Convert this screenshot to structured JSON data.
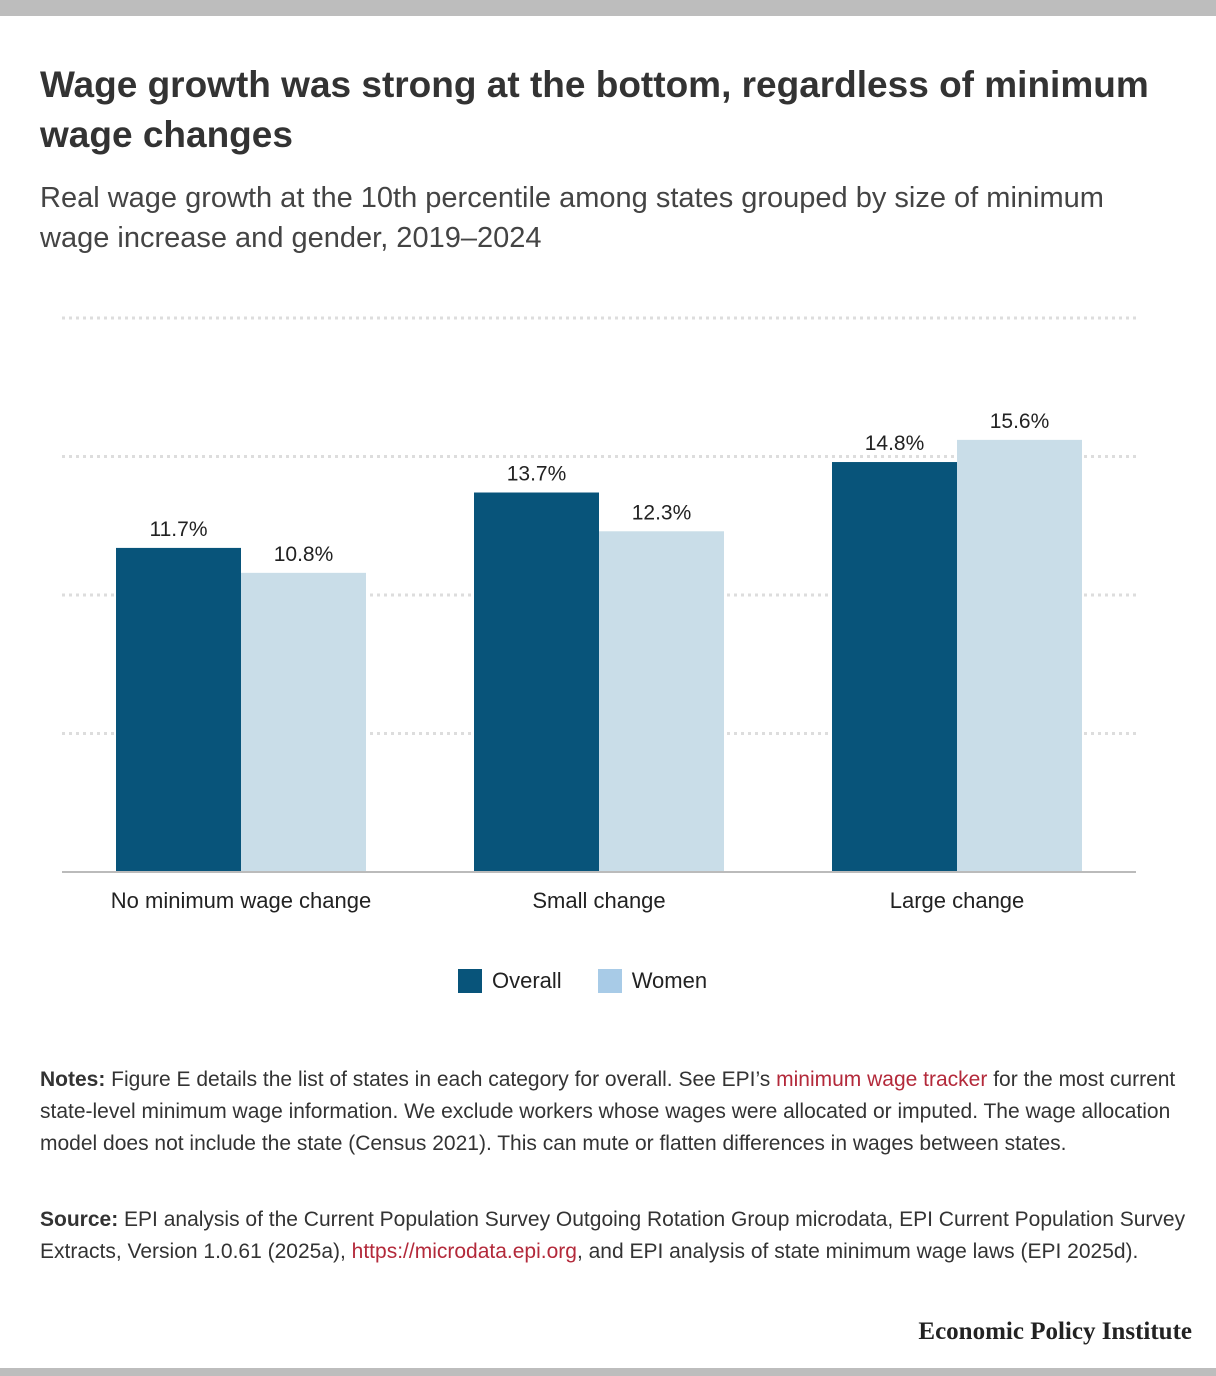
{
  "title": "Wage growth was strong at the bottom, regardless of minimum wage changes",
  "subtitle": "Real wage growth at the 10th percentile among states grouped by size of minimum wage increase and gender, 2019–2024",
  "colors": {
    "overall": "#08547a",
    "women": "#c9dde8",
    "women_legend": "#a8cbe7",
    "grid": "#dddddd",
    "axis": "#bbbbbb",
    "link": "#b3293a"
  },
  "chart_data": {
    "type": "bar",
    "categories": [
      "No minimum wage change",
      "Small change",
      "Large change"
    ],
    "series": [
      {
        "name": "Overall",
        "values": [
          11.7,
          13.7,
          14.8
        ],
        "labels": [
          "11.7%",
          "13.7%",
          "14.8%"
        ]
      },
      {
        "name": "Women",
        "values": [
          10.8,
          12.3,
          15.6
        ],
        "labels": [
          "10.8%",
          "12.3%",
          "15.6%"
        ]
      }
    ],
    "ylim": [
      0,
      20
    ],
    "grid": true,
    "legend_position": "bottom-center"
  },
  "legend": {
    "overall_label": "Overall",
    "women_label": "Women"
  },
  "notes": {
    "label": "Notes:",
    "text_before_link": " Figure E details the list of states in each category for overall. See EPI’s ",
    "link_text": "minimum wage tracker",
    "text_after_link": " for the most current state-level minimum wage information. We exclude workers whose wages were allocated or imputed. The wage allocation model does not include the state (Census 2021). This can mute or flatten differences in wages between states."
  },
  "source": {
    "label": "Source:",
    "text_before_link": " EPI analysis of the Current Population Survey Outgoing Rotation Group microdata, EPI Current Population Survey Extracts, Version 1.0.61 (2025a), ",
    "link_text": "https://microdata.epi.org",
    "text_after_link": ", and EPI analysis of state minimum wage laws (EPI 2025d)."
  },
  "footer": {
    "organization": "Economic Policy Institute"
  }
}
